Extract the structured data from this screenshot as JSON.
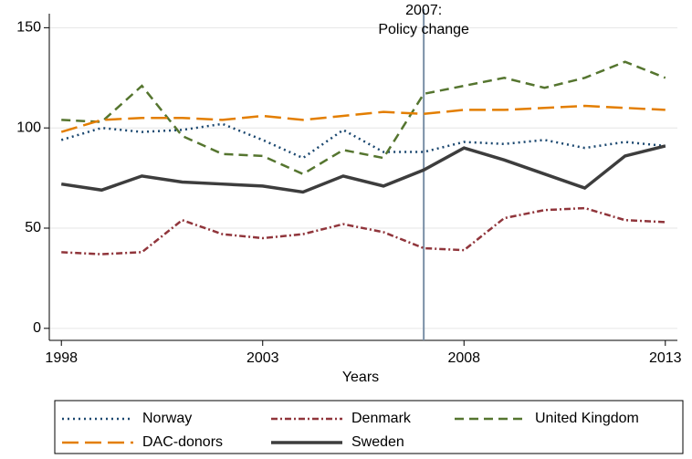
{
  "chart_data": {
    "type": "line",
    "x": [
      1998,
      1999,
      2000,
      2001,
      2002,
      2003,
      2004,
      2005,
      2006,
      2007,
      2008,
      2009,
      2010,
      2011,
      2012,
      2013
    ],
    "xlabel": "Years",
    "xlim": [
      1997.7,
      2013.3
    ],
    "xticks": [
      1998,
      2003,
      2008,
      2013
    ],
    "ylim": [
      -6,
      157
    ],
    "yticks": [
      0,
      50,
      100,
      150
    ],
    "grid": true,
    "vline": 2007,
    "annotation": [
      "2007:",
      "Policy change"
    ],
    "legend": "bottom",
    "series": [
      {
        "name": "Norway",
        "color": "#1a476f",
        "dash": "dotted",
        "values": [
          94,
          100,
          98,
          99,
          102,
          94,
          85,
          99,
          88,
          88,
          93,
          92,
          94,
          90,
          93,
          91
        ]
      },
      {
        "name": "Denmark",
        "color": "#90353b",
        "dash": "dashdot",
        "values": [
          38,
          37,
          38,
          54,
          47,
          45,
          47,
          52,
          48,
          40,
          39,
          55,
          59,
          60,
          54,
          53
        ]
      },
      {
        "name": "United Kingdom",
        "color": "#55752f",
        "dash": "dashed",
        "values": [
          104,
          103,
          121,
          96,
          87,
          86,
          77,
          89,
          85,
          117,
          121,
          125,
          120,
          125,
          133,
          125
        ]
      },
      {
        "name": "DAC-donors",
        "color": "#e37e00",
        "dash": "longdash",
        "values": [
          98,
          104,
          105,
          105,
          104,
          106,
          104,
          106,
          108,
          107,
          109,
          109,
          110,
          111,
          110,
          109
        ]
      },
      {
        "name": "Sweden",
        "color": "#3d3d3d",
        "dash": "solid",
        "values": [
          72,
          69,
          76,
          73,
          72,
          71,
          68,
          76,
          71,
          79,
          90,
          84,
          77,
          70,
          86,
          91
        ]
      }
    ]
  }
}
